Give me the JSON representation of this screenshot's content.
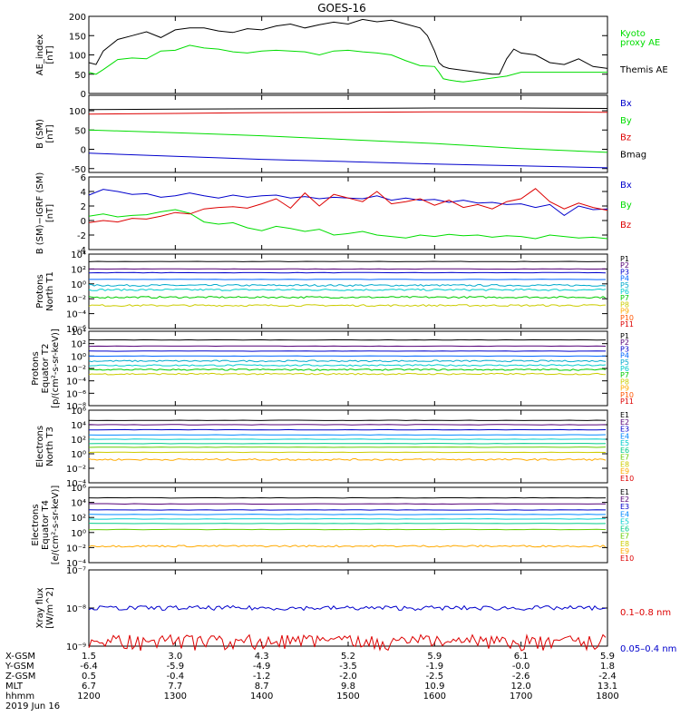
{
  "title": "GOES-16",
  "colors": {
    "black": "#000000",
    "green": "#00dd00",
    "blue": "#0000cc",
    "red": "#dd0000",
    "cyan": "#00cccc",
    "proton_levels": [
      "#000000",
      "#550077",
      "#0000cc",
      "#0066ff",
      "#00aacc",
      "#00cccc",
      "#00cc00",
      "#cccc00",
      "#ffaa00",
      "#ff5500",
      "#dd0000"
    ],
    "electron_levels": [
      "#000000",
      "#550077",
      "#0000cc",
      "#0088ff",
      "#00cccc",
      "#00cc88",
      "#66cc00",
      "#cccc00",
      "#ffaa00",
      "#dd0000"
    ]
  },
  "chart_data": [
    {
      "type": "line",
      "ylabel_lines": [
        "AE_index",
        "[nT]"
      ],
      "ylim": [
        0,
        200
      ],
      "yticks": [
        "0",
        "50",
        "100",
        "150",
        "200"
      ],
      "legend": [
        {
          "text": "Kyoto",
          "color": "green"
        },
        {
          "text": "proxy AE",
          "color": "green"
        },
        {
          "text": "Themis AE",
          "color": "black"
        }
      ],
      "series": [
        {
          "name": "Kyoto proxy AE",
          "color": "green",
          "x": [
            1200,
            1205,
            1210,
            1220,
            1230,
            1240,
            1250,
            1300,
            1310,
            1320,
            1330,
            1340,
            1350,
            1400,
            1410,
            1420,
            1430,
            1440,
            1450,
            1500,
            1510,
            1520,
            1530,
            1540,
            1550,
            1600,
            1603,
            1606,
            1610,
            1615,
            1620,
            1630,
            1640,
            1650,
            1700,
            1710,
            1720,
            1730,
            1740,
            1750,
            1800
          ],
          "y": [
            55,
            50,
            62,
            88,
            92,
            90,
            110,
            112,
            125,
            118,
            115,
            108,
            105,
            110,
            112,
            110,
            108,
            100,
            110,
            112,
            108,
            105,
            100,
            85,
            72,
            70,
            55,
            38,
            35,
            32,
            30,
            35,
            40,
            45,
            55,
            55,
            55,
            55,
            55,
            55,
            55
          ]
        },
        {
          "name": "Themis AE",
          "color": "black",
          "x": [
            1200,
            1205,
            1210,
            1215,
            1220,
            1230,
            1240,
            1250,
            1300,
            1310,
            1320,
            1330,
            1340,
            1350,
            1400,
            1410,
            1420,
            1430,
            1440,
            1450,
            1500,
            1510,
            1520,
            1530,
            1540,
            1550,
            1555,
            1600,
            1603,
            1606,
            1610,
            1620,
            1630,
            1640,
            1645,
            1650,
            1655,
            1700,
            1710,
            1720,
            1730,
            1740,
            1750,
            1800
          ],
          "y": [
            80,
            75,
            110,
            125,
            140,
            150,
            160,
            145,
            165,
            170,
            170,
            162,
            158,
            168,
            165,
            175,
            180,
            170,
            178,
            185,
            180,
            192,
            186,
            190,
            180,
            170,
            150,
            110,
            80,
            70,
            65,
            60,
            55,
            50,
            50,
            90,
            115,
            105,
            100,
            80,
            75,
            90,
            70,
            65
          ]
        }
      ]
    },
    {
      "type": "line",
      "ylabel_lines": [
        "B (SM)",
        "[nT]"
      ],
      "ylim": [
        -60,
        140
      ],
      "yticks": [
        "-50",
        "0",
        "50",
        "100"
      ],
      "legend": [
        {
          "text": "Bx",
          "color": "blue"
        },
        {
          "text": "By",
          "color": "green"
        },
        {
          "text": "Bz",
          "color": "red"
        },
        {
          "text": "Bmag",
          "color": "black"
        }
      ],
      "series": [
        {
          "name": "Bmag",
          "color": "black",
          "x": [
            1200,
            1300,
            1400,
            1500,
            1600,
            1700,
            1800
          ],
          "y": [
            103,
            104,
            105,
            106,
            107,
            107,
            106
          ]
        },
        {
          "name": "Bz",
          "color": "red",
          "x": [
            1200,
            1300,
            1400,
            1500,
            1600,
            1700,
            1800
          ],
          "y": [
            91,
            93,
            95,
            96,
            97,
            97,
            96
          ]
        },
        {
          "name": "By",
          "color": "green",
          "x": [
            1200,
            1300,
            1400,
            1500,
            1600,
            1700,
            1800
          ],
          "y": [
            50,
            43,
            35,
            25,
            15,
            2,
            -8
          ]
        },
        {
          "name": "Bx",
          "color": "blue",
          "x": [
            1200,
            1300,
            1400,
            1500,
            1600,
            1700,
            1800
          ],
          "y": [
            -10,
            -18,
            -26,
            -32,
            -38,
            -43,
            -48
          ]
        }
      ]
    },
    {
      "type": "line",
      "ylabel_lines": [
        "B (SM)−IGRF (SM)",
        "[nT]"
      ],
      "ylim": [
        -4,
        6
      ],
      "yticks": [
        "-4",
        "-2",
        "0",
        "2",
        "4",
        "6"
      ],
      "legend": [
        {
          "text": "Bx",
          "color": "blue"
        },
        {
          "text": "By",
          "color": "green"
        },
        {
          "text": "Bz",
          "color": "red"
        }
      ],
      "series": [
        {
          "name": "Bx",
          "color": "blue",
          "x": [
            1200,
            1210,
            1220,
            1230,
            1240,
            1250,
            1300,
            1310,
            1320,
            1330,
            1340,
            1350,
            1400,
            1410,
            1420,
            1430,
            1440,
            1450,
            1500,
            1510,
            1520,
            1530,
            1540,
            1550,
            1600,
            1610,
            1620,
            1630,
            1640,
            1650,
            1700,
            1710,
            1720,
            1730,
            1740,
            1750,
            1800
          ],
          "y": [
            3.5,
            4.3,
            4.0,
            3.6,
            3.7,
            3.2,
            3.4,
            3.8,
            3.4,
            3.1,
            3.5,
            3.2,
            3.4,
            3.5,
            3.1,
            3.3,
            3.0,
            3.2,
            3.1,
            3.0,
            3.4,
            2.8,
            3.1,
            2.8,
            2.9,
            2.5,
            2.8,
            2.4,
            2.5,
            2.2,
            2.3,
            1.8,
            2.2,
            0.7,
            2.0,
            1.5,
            1.6
          ]
        },
        {
          "name": "By",
          "color": "green",
          "x": [
            1200,
            1210,
            1220,
            1230,
            1240,
            1250,
            1300,
            1310,
            1320,
            1330,
            1340,
            1350,
            1400,
            1410,
            1420,
            1430,
            1440,
            1450,
            1500,
            1510,
            1520,
            1530,
            1540,
            1550,
            1600,
            1610,
            1620,
            1630,
            1640,
            1650,
            1700,
            1710,
            1720,
            1730,
            1740,
            1750,
            1800
          ],
          "y": [
            0.6,
            0.9,
            0.5,
            0.7,
            0.8,
            1.2,
            1.5,
            1.0,
            -0.2,
            -0.5,
            -0.3,
            -1.0,
            -1.4,
            -0.8,
            -1.1,
            -1.5,
            -1.2,
            -2.0,
            -1.8,
            -1.5,
            -2.0,
            -2.2,
            -2.4,
            -2.0,
            -2.2,
            -1.9,
            -2.1,
            -2.0,
            -2.3,
            -2.1,
            -2.2,
            -2.5,
            -2.0,
            -2.2,
            -2.4,
            -2.3,
            -2.5
          ]
        },
        {
          "name": "Bz",
          "color": "red",
          "x": [
            1200,
            1210,
            1220,
            1230,
            1240,
            1250,
            1300,
            1310,
            1320,
            1330,
            1340,
            1350,
            1400,
            1410,
            1420,
            1430,
            1440,
            1450,
            1500,
            1510,
            1520,
            1530,
            1540,
            1550,
            1600,
            1610,
            1620,
            1630,
            1640,
            1650,
            1700,
            1710,
            1720,
            1730,
            1740,
            1750,
            1800
          ],
          "y": [
            -0.3,
            0.0,
            -0.2,
            0.3,
            0.2,
            0.6,
            1.1,
            0.9,
            1.6,
            1.8,
            1.9,
            1.7,
            2.3,
            3.0,
            1.7,
            3.8,
            2.0,
            3.6,
            3.1,
            2.6,
            4.0,
            2.3,
            2.6,
            3.0,
            2.1,
            2.8,
            1.8,
            2.2,
            1.6,
            2.6,
            3.0,
            4.4,
            2.6,
            1.6,
            2.4,
            1.8,
            1.4
          ]
        }
      ]
    },
    {
      "type": "line",
      "ylog": true,
      "ylabel_lines": [
        "Protons",
        "North T1"
      ],
      "ylim_exp": [
        -6,
        4
      ],
      "yticks": [
        "10⁴",
        "10²",
        "10⁰",
        "10⁻²",
        "10⁻⁴",
        "10⁻⁶"
      ],
      "legend": [
        {
          "text": "P1",
          "color": "p0"
        },
        {
          "text": "P2",
          "color": "p1"
        },
        {
          "text": "P3",
          "color": "p2"
        },
        {
          "text": "P4",
          "color": "p3"
        },
        {
          "text": "P5",
          "color": "p4"
        },
        {
          "text": "P6",
          "color": "p5"
        },
        {
          "text": "P7",
          "color": "p6"
        },
        {
          "text": "P8",
          "color": "p7"
        },
        {
          "text": "P9",
          "color": "p8"
        },
        {
          "text": "P10",
          "color": "p9"
        },
        {
          "text": "P11",
          "color": "p10"
        }
      ],
      "levels_log10": [
        3.0,
        2.0,
        1.5,
        0.6,
        -0.2,
        -0.8,
        -1.8,
        -2.9
      ],
      "level_colors": [
        "p0",
        "p1",
        "p2",
        "p3",
        "p4",
        "p5",
        "p6",
        "p7"
      ]
    },
    {
      "type": "line",
      "ylog": true,
      "ylabel_lines": [
        "Protons",
        "Equator T2",
        "[p/(cm²-s-sr-keV)]"
      ],
      "ylim_exp": [
        -8,
        4
      ],
      "yticks": [
        "10⁴",
        "10²",
        "10⁰",
        "10⁻²",
        "10⁻⁴",
        "10⁻⁶",
        "10⁻⁸"
      ],
      "legend": [
        {
          "text": "P1",
          "color": "p0"
        },
        {
          "text": "P2",
          "color": "p1"
        },
        {
          "text": "P3",
          "color": "p2"
        },
        {
          "text": "P4",
          "color": "p3"
        },
        {
          "text": "P5",
          "color": "p4"
        },
        {
          "text": "P6",
          "color": "p5"
        },
        {
          "text": "P7",
          "color": "p6"
        },
        {
          "text": "P8",
          "color": "p7"
        },
        {
          "text": "P9",
          "color": "p8"
        },
        {
          "text": "P10",
          "color": "p9"
        },
        {
          "text": "P11",
          "color": "p10"
        }
      ],
      "levels_log10": [
        2.6,
        1.6,
        0.8,
        0.0,
        -0.8,
        -1.5,
        -2.2,
        -2.9
      ],
      "level_colors": [
        "p0",
        "p1",
        "p2",
        "p3",
        "p4",
        "p5",
        "p6",
        "p7"
      ]
    },
    {
      "type": "line",
      "ylog": true,
      "ylabel_lines": [
        "Electrons",
        "North T3"
      ],
      "ylim_exp": [
        -4,
        6
      ],
      "yticks": [
        "10⁶",
        "10⁴",
        "10²",
        "10⁰",
        "10⁻²",
        "10⁻⁴"
      ],
      "legend": [
        {
          "text": "E1",
          "color": "e0"
        },
        {
          "text": "E2",
          "color": "e1"
        },
        {
          "text": "E3",
          "color": "e2"
        },
        {
          "text": "E4",
          "color": "e3"
        },
        {
          "text": "E5",
          "color": "e4"
        },
        {
          "text": "E6",
          "color": "e5"
        },
        {
          "text": "E7",
          "color": "e6"
        },
        {
          "text": "E8",
          "color": "e7"
        },
        {
          "text": "E9",
          "color": "e8"
        },
        {
          "text": "E10",
          "color": "e9"
        }
      ],
      "levels_log10": [
        4.6,
        4.0,
        3.3,
        2.6,
        2.0,
        1.4,
        0.9,
        0.2,
        -0.8
      ],
      "level_colors": [
        "e0",
        "e1",
        "e2",
        "e3",
        "e4",
        "e5",
        "e6",
        "e7",
        "e8"
      ]
    },
    {
      "type": "line",
      "ylog": true,
      "ylabel_lines": [
        "Electrons",
        "Equator T4",
        "[e/(cm²-s-sr-keV)]"
      ],
      "ylim_exp": [
        -4,
        6
      ],
      "yticks": [
        "10⁶",
        "10⁴",
        "10²",
        "10⁰",
        "10⁻²",
        "10⁻⁴"
      ],
      "legend": [
        {
          "text": "E1",
          "color": "e0"
        },
        {
          "text": "E2",
          "color": "e1"
        },
        {
          "text": "E3",
          "color": "e2"
        },
        {
          "text": "E4",
          "color": "e3"
        },
        {
          "text": "E5",
          "color": "e4"
        },
        {
          "text": "E6",
          "color": "e5"
        },
        {
          "text": "E7",
          "color": "e6"
        },
        {
          "text": "E8",
          "color": "e7"
        },
        {
          "text": "E9",
          "color": "e8"
        },
        {
          "text": "E10",
          "color": "e9"
        }
      ],
      "levels_log10": [
        4.6,
        3.8,
        3.0,
        2.4,
        1.8,
        1.2,
        0.4,
        -1.8
      ],
      "level_colors": [
        "e0",
        "e1",
        "e2",
        "e3",
        "e4",
        "e5",
        "e6",
        "e8"
      ]
    },
    {
      "type": "line",
      "ylog": true,
      "ylabel_lines": [
        "Xray flux",
        "[W/m^2]"
      ],
      "ylim_exp": [
        -9,
        -7
      ],
      "yticks": [
        "10⁻⁷",
        "10⁻⁸",
        "10⁻⁹"
      ],
      "legend": [
        {
          "text": "0.1–0.8 nm",
          "color": "red"
        },
        {
          "text": "0.05–0.4 nm",
          "color": "blue"
        }
      ],
      "levels_log10": [
        -8.0,
        -8.7
      ],
      "level_colors": [
        "blue",
        "red"
      ]
    }
  ],
  "xaxis": {
    "rows": [
      {
        "label": "X-GSM",
        "values": [
          "1.5",
          "3.0",
          "4.3",
          "5.2",
          "5.9",
          "6.1",
          "5.9"
        ]
      },
      {
        "label": "Y-GSM",
        "values": [
          "-6.4",
          "-5.9",
          "-4.9",
          "-3.5",
          "-1.9",
          "-0.0",
          "1.8"
        ]
      },
      {
        "label": "Z-GSM",
        "values": [
          "0.5",
          "-0.4",
          "-1.2",
          "-2.0",
          "-2.5",
          "-2.6",
          "-2.4"
        ]
      },
      {
        "label": "MLT",
        "values": [
          "6.7",
          "7.7",
          "8.7",
          "9.8",
          "10.9",
          "12.0",
          "13.1"
        ]
      },
      {
        "label": "hhmm",
        "values": [
          "1200",
          "1300",
          "1400",
          "1500",
          "1600",
          "1700",
          "1800"
        ]
      }
    ],
    "date": "2019 Jun 16"
  }
}
